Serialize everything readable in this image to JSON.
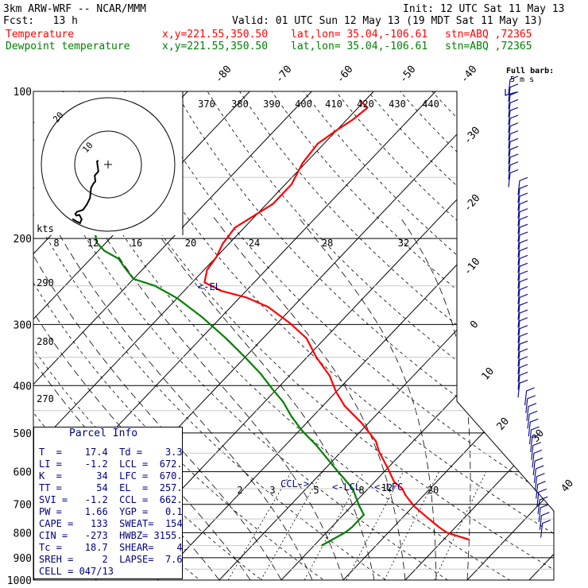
{
  "header": {
    "model": "3km ARW-WRF -- NCAR/MMM",
    "init": "Init: 12 UTC Sat 11 May 13",
    "fcst": "Fcst:   13 h",
    "valid": "Valid: 01 UTC Sun 12 May 13 (19 MDT Sat 11 May 13)",
    "series": [
      {
        "name": "Temperature",
        "color": "#ff0000",
        "xy": "x,y=221.55,350.50",
        "latlon": "lat,lon= 35.04,-106.61",
        "stn": "stn=ABQ ,72365"
      },
      {
        "name": "Dewpoint temperature",
        "color": "#008000",
        "xy": "x,y=221.55,350.50",
        "latlon": "lat,lon= 35.04,-106.61",
        "stn": "stn=ABQ ,72365"
      }
    ]
  },
  "wind_barb_key": {
    "line1": "Full barb:",
    "line2": "5 m s",
    "color": "#000080",
    "barb_color": "#00008b"
  },
  "parcel_info": {
    "title": "Parcel Info",
    "rows": [
      "T  =    17.4  Td =    3.3",
      "LI =    -1.2  LCL =  672.",
      "K  =      34  LFC =  670.",
      "TT =      54  EL  =  257.",
      "SVI =   -1.2  CCL =  662.",
      "PW =    1.66  YGP =   0.1",
      "CAPE =   133  SWEAT=  154",
      "CIN =   -273  HWBZ= 3155.",
      "Tc =    18.7  SHEAR=    4.",
      "SREH =     2  LAPSE=  7.6",
      "CELL = 047/13"
    ]
  },
  "hodograph": {
    "ring_labels": [
      "10",
      "20"
    ],
    "units_label": "kts",
    "speed_labels": [
      "8",
      "12",
      "16",
      "20",
      "24",
      "28",
      "32"
    ],
    "wind_u_v_kts": [
      [
        -2.9,
        -1.2
      ],
      [
        -3.3,
        -0.9
      ],
      [
        -2.9,
        2.1
      ],
      [
        -4.0,
        3.3
      ],
      [
        -3.8,
        5.1
      ],
      [
        -4.3,
        5.6
      ],
      [
        -5.1,
        7.0
      ],
      [
        -5.4,
        10.0
      ],
      [
        -6.3,
        11.9
      ],
      [
        -7.5,
        13.6
      ],
      [
        -9.3,
        14.2
      ],
      [
        -9.8,
        14.8
      ],
      [
        -9.5,
        15.3
      ],
      [
        -8.6,
        15.1
      ],
      [
        -7.9,
        16.4
      ],
      [
        -8.4,
        17.6
      ],
      [
        -9.6,
        17.0
      ],
      [
        -10.7,
        16.3
      ]
    ]
  },
  "chart_data": {
    "type": "line",
    "title": "",
    "xlabel": "",
    "ylabel": "",
    "yscale": "log-pressure",
    "ylim": [
      1000,
      100
    ],
    "pressure_labels": [
      100,
      200,
      300,
      400,
      500,
      600,
      700,
      800,
      900,
      1000
    ],
    "isotherm_labels": [
      -80,
      -70,
      -60,
      -50,
      -40,
      -30,
      -20,
      -10,
      0,
      10,
      20,
      30,
      40
    ],
    "theta_labels": [
      370,
      380,
      390,
      400,
      410,
      420,
      430,
      440
    ],
    "left_theta_labels": [
      290,
      280,
      270
    ],
    "mixing_ratio_labels": [
      2,
      3,
      5,
      8,
      12,
      20
    ],
    "annotations": [
      "<-EL",
      "CCL->",
      "<-LCL",
      "<-LFC"
    ],
    "series": [
      {
        "name": "Temperature",
        "color": "#ff0000",
        "x": [
          24.2,
          19.5,
          17.4,
          13.0,
          10.0,
          7.0,
          5.5,
          3.2,
          0.0,
          -4.0,
          -6.0,
          -11.0,
          -16.5,
          -20.0,
          -23.5,
          -28.5,
          -33.0,
          -38.0,
          -44.0,
          -49.0,
          -54.0,
          -58.0,
          -59.5,
          -60.0,
          -61.0,
          -61.5,
          -59.0,
          -59.0,
          -60.5,
          -61.0,
          -60.0,
          -59.0,
          -58.5,
          -61.0
        ],
        "y": [
          827,
          800,
          780,
          735,
          705,
          670,
          650,
          630,
          590,
          545,
          520,
          478,
          440,
          412,
          382,
          350,
          320,
          298,
          276,
          264,
          256,
          246,
          232,
          218,
          205,
          190,
          170,
          155,
          140,
          128,
          120,
          114,
          108,
          104
        ]
      },
      {
        "name": "Dewpoint temperature",
        "color": "#008000",
        "x": [
          1.2,
          3.0,
          3.3,
          3.3,
          1.2,
          -2.5,
          -8.5,
          -15.0,
          -19.5,
          -23.5,
          -27.0,
          -30.5,
          -35.0,
          -40.0,
          -46.0,
          -53.0,
          -60.0,
          -65.5,
          -70.0,
          -73.0,
          -75.5,
          -79.0,
          -81.5,
          -83.0,
          -83.0,
          -83.0,
          -85.0,
          -86.0,
          -87.5,
          -89.5,
          -91.5,
          -94.0,
          -95.5,
          -97.5
        ],
        "y": [
          850,
          800,
          780,
          735,
          705,
          650,
          590,
          530,
          495,
          462,
          432,
          408,
          378,
          350,
          320,
          290,
          265,
          250,
          242,
          230,
          220,
          212,
          204,
          196,
          186,
          176,
          164,
          155,
          145,
          135,
          127,
          117,
          108,
          104
        ]
      }
    ]
  }
}
